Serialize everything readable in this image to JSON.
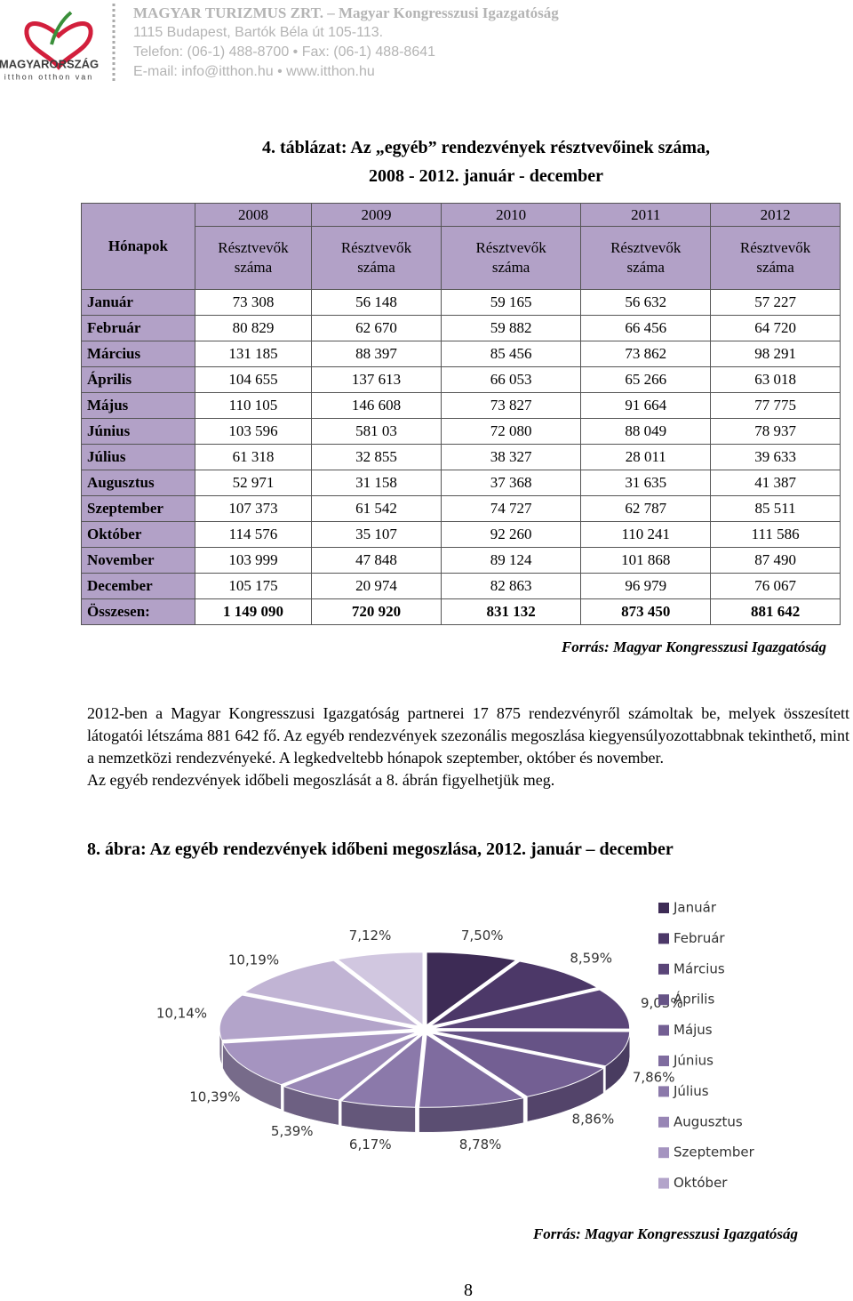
{
  "header": {
    "logo_text": "MAGYARORSZÁG",
    "logo_slogan": "itthon otthon van",
    "lines": [
      "MAGYAR TURIZMUS ZRT. – Magyar Kongresszusi Igazgatóság",
      "1115 Budapest, Bartók Béla út 105-113.",
      "Telefon: (06-1) 488-8700 • Fax: (06-1) 488-8641",
      "E-mail: info@itthon.hu • www.itthon.hu"
    ]
  },
  "table_caption": [
    "4. táblázat: Az „egyéb” rendezvények résztvevőinek száma,",
    "2008 - 2012. január - december"
  ],
  "table": {
    "corner": "Hónapok",
    "years": [
      "2008",
      "2009",
      "2010",
      "2011",
      "2012"
    ],
    "subheaders": [
      "Résztvevők száma",
      "Résztvevők száma",
      "Résztvevők száma",
      "Résztvevők száma",
      "Résztvevők száma"
    ],
    "rows": [
      [
        "Január",
        "73 308",
        "56 148",
        "59 165",
        "56 632",
        "57 227"
      ],
      [
        "Február",
        "80 829",
        "62 670",
        "59 882",
        "66 456",
        "64 720"
      ],
      [
        "Március",
        "131 185",
        "88 397",
        "85 456",
        "73 862",
        "98 291"
      ],
      [
        "Április",
        "104 655",
        "137 613",
        "66 053",
        "65 266",
        "63 018"
      ],
      [
        "Május",
        "110 105",
        "146 608",
        "73 827",
        "91 664",
        "77 775"
      ],
      [
        "Június",
        "103 596",
        "581 03",
        "72 080",
        "88 049",
        "78 937"
      ],
      [
        "Július",
        "61 318",
        "32 855",
        "38 327",
        "28 011",
        "39 633"
      ],
      [
        "Augusztus",
        "52 971",
        "31 158",
        "37 368",
        "31 635",
        "41 387"
      ],
      [
        "Szeptember",
        "107 373",
        "61 542",
        "74 727",
        "62 787",
        "85 511"
      ],
      [
        "Október",
        "114 576",
        "35 107",
        "92 260",
        "110 241",
        "111 586"
      ],
      [
        "November",
        "103 999",
        "47 848",
        "89 124",
        "101 868",
        "87 490"
      ],
      [
        "December",
        "105 175",
        "20 974",
        "82 863",
        "96 979",
        "76 067"
      ]
    ],
    "total": [
      "Összesen:",
      "1 149 090",
      "720 920",
      "831 132",
      "873 450",
      "881 642"
    ]
  },
  "table_source": "Forrás: Magyar Kongresszusi Igazgatóság",
  "paragraphs": [
    "2012-ben a Magyar Kongresszusi Igazgatóság partnerei 17 875 rendezvényről számoltak be, melyek összesített látogatói létszáma 881 642 fő. Az egyéb rendezvények szezonális megoszlása kiegyensúlyozottabbnak tekinthető, mint a nemzetközi rendezvényeké. A legkedveltebb hónapok szeptember, október és november.",
    "Az egyéb rendezvények időbeli megoszlását a 8. ábrán figyelhetjük meg."
  ],
  "figure_caption": "8. ábra: Az egyéb rendezvények időbeni megoszlása, 2012. január – december",
  "chart_data": {
    "type": "pie",
    "categories": [
      "Január",
      "Február",
      "Március",
      "Április",
      "Május",
      "Június",
      "Július",
      "Augusztus",
      "Szeptember",
      "Október",
      null,
      null
    ],
    "values": [
      7.5,
      8.59,
      9.03,
      7.86,
      8.86,
      8.78,
      6.17,
      5.39,
      10.39,
      10.14,
      10.19,
      7.12
    ],
    "value_labels": [
      "7,50%",
      "8,59%",
      "9,03%",
      "7,86%",
      "8,86%",
      "8,78%",
      "6,17%",
      "5,39%",
      "10,39%",
      "10,14%",
      "10,19%",
      "7,12%"
    ],
    "colors": [
      "#3d2b55",
      "#4c3868",
      "#5a4578",
      "#665386",
      "#735f93",
      "#7f6c9f",
      "#8b79aa",
      "#9886b5",
      "#a594c0",
      "#b3a4ca",
      "#c1b4d4",
      "#d1c7e0"
    ]
  },
  "figure_source": "Forrás: Magyar Kongresszusi Igazgatóság",
  "page_number": "8"
}
